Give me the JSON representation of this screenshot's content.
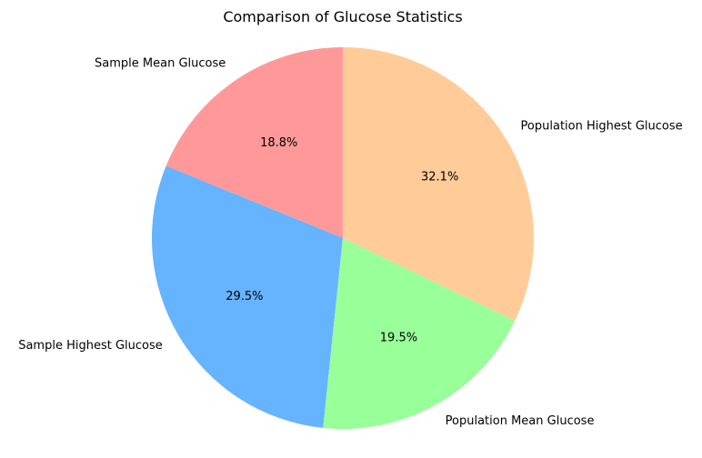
{
  "chart_data": {
    "type": "pie",
    "title": "Comparison of Glucose Statistics",
    "start_angle_deg": 90,
    "direction": "counterclockwise",
    "slices": [
      {
        "label": "Sample Mean Glucose",
        "value": 18.8,
        "pct_text": "18.8%",
        "color": "#ff9999"
      },
      {
        "label": "Sample Highest Glucose",
        "value": 29.5,
        "pct_text": "29.5%",
        "color": "#66b3ff"
      },
      {
        "label": "Population Mean Glucose",
        "value": 19.5,
        "pct_text": "19.5%",
        "color": "#99ff99"
      },
      {
        "label": "Population Highest Glucose",
        "value": 32.1,
        "pct_text": "32.1%",
        "color": "#ffcc99"
      }
    ]
  }
}
